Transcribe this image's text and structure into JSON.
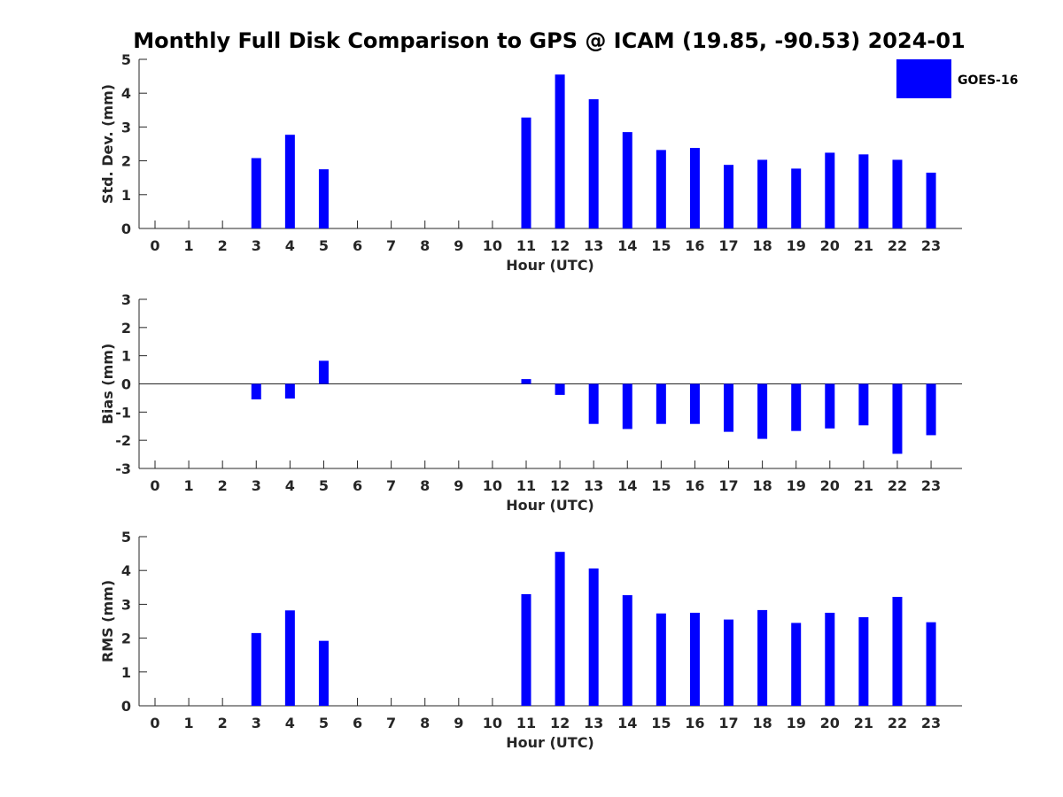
{
  "chart_data": {
    "type": "bar",
    "title": "Monthly Full Disk Comparison to GPS @ ICAM (19.85, -90.53) 2024-01",
    "legend": {
      "entries": [
        "GOES-16"
      ],
      "placement": "top-right"
    },
    "bar_color": "#0000ff",
    "categories": [
      "0",
      "1",
      "2",
      "3",
      "4",
      "5",
      "6",
      "7",
      "8",
      "9",
      "10",
      "11",
      "12",
      "13",
      "14",
      "15",
      "16",
      "17",
      "18",
      "19",
      "20",
      "21",
      "22",
      "23"
    ],
    "panels": [
      {
        "ylabel": "Std. Dev. (mm)",
        "xlabel": "Hour (UTC)",
        "ylim": [
          0,
          5
        ],
        "yticks": [
          "0",
          "1",
          "2",
          "3",
          "4",
          "5"
        ],
        "series": [
          {
            "name": "GOES-16",
            "values": [
              null,
              null,
              null,
              2.08,
              2.77,
              1.75,
              null,
              null,
              null,
              null,
              null,
              3.28,
              4.55,
              3.82,
              2.85,
              2.32,
              2.38,
              1.88,
              2.03,
              1.77,
              2.24,
              2.19,
              2.03,
              1.65
            ]
          }
        ]
      },
      {
        "ylabel": "Bias (mm)",
        "xlabel": "Hour (UTC)",
        "ylim": [
          -3,
          3
        ],
        "yticks": [
          "-3",
          "-2",
          "-1",
          "0",
          "1",
          "2",
          "3"
        ],
        "zero_line": true,
        "series": [
          {
            "name": "GOES-16",
            "values": [
              null,
              null,
              null,
              -0.55,
              -0.52,
              0.82,
              null,
              null,
              null,
              null,
              null,
              0.17,
              -0.39,
              -1.42,
              -1.6,
              -1.42,
              -1.42,
              -1.7,
              -1.95,
              -1.67,
              -1.58,
              -1.47,
              -2.48,
              -1.82
            ]
          }
        ]
      },
      {
        "ylabel": "RMS (mm)",
        "xlabel": "Hour (UTC)",
        "ylim": [
          0,
          5
        ],
        "yticks": [
          "0",
          "1",
          "2",
          "3",
          "4",
          "5"
        ],
        "series": [
          {
            "name": "GOES-16",
            "values": [
              null,
              null,
              null,
              2.15,
              2.82,
              1.92,
              null,
              null,
              null,
              null,
              null,
              3.3,
              4.55,
              4.06,
              3.27,
              2.73,
              2.75,
              2.55,
              2.83,
              2.45,
              2.75,
              2.62,
              3.22,
              2.47
            ]
          }
        ]
      }
    ]
  }
}
